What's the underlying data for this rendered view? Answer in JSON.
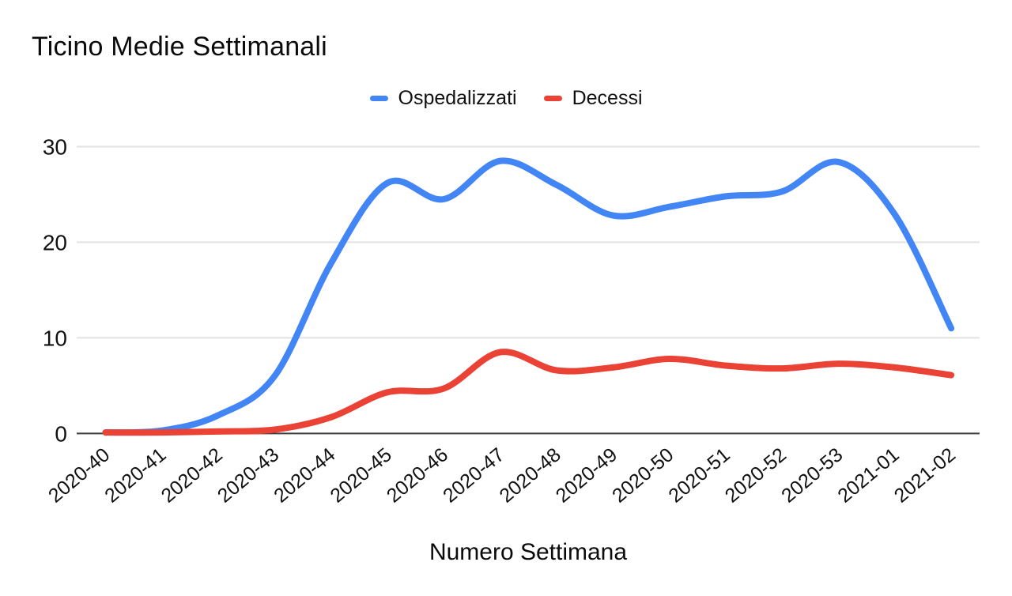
{
  "chart_data": {
    "type": "line",
    "title": "Ticino Medie Settimanali",
    "x_axis_title": "Numero Settimana",
    "categories": [
      "2020-40",
      "2020-41",
      "2020-42",
      "2020-43",
      "2020-44",
      "2020-45",
      "2020-46",
      "2020-47",
      "2020-48",
      "2020-49",
      "2020-50",
      "2020-51",
      "2020-52",
      "2020-53",
      "2021-01",
      "2021-02"
    ],
    "series": [
      {
        "name": "Ospedalizzati",
        "color": "#4285F4",
        "values": [
          0.1,
          0.3,
          1.9,
          6.0,
          17.8,
          26.2,
          24.5,
          28.5,
          26.0,
          22.8,
          23.7,
          24.8,
          25.3,
          28.4,
          22.9,
          11.0
        ]
      },
      {
        "name": "Decessi",
        "color": "#EA4335",
        "values": [
          0.1,
          0.1,
          0.2,
          0.4,
          1.7,
          4.3,
          4.7,
          8.5,
          6.6,
          6.9,
          7.8,
          7.1,
          6.8,
          7.3,
          6.9,
          6.1
        ]
      }
    ],
    "y_ticks": [
      0,
      10,
      20,
      30
    ],
    "ylim": [
      0,
      30
    ],
    "grid": true,
    "legend_position": "top",
    "line_smooth": true,
    "axis_text_color": "#111111",
    "grid_color": "#e2e2e2",
    "baseline_color": "#3c3c3c"
  }
}
